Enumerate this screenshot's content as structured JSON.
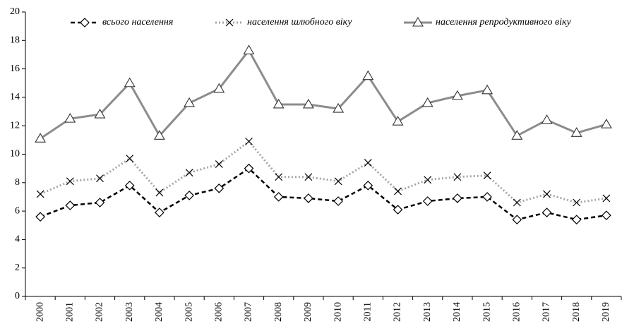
{
  "chart_data": {
    "type": "line",
    "categories": [
      "2000",
      "2001",
      "2002",
      "2003",
      "2004",
      "2005",
      "2006",
      "2007",
      "2008",
      "2009",
      "2010",
      "2011",
      "2012",
      "2013",
      "2014",
      "2015",
      "2016",
      "2017",
      "2018",
      "2019"
    ],
    "series": [
      {
        "name": "всього населення",
        "color": "#000000",
        "dash": "6,4",
        "marker": "diamond",
        "values": [
          5.6,
          6.4,
          6.6,
          7.8,
          5.9,
          7.1,
          7.6,
          9.0,
          7.0,
          6.9,
          6.7,
          7.8,
          6.1,
          6.7,
          6.9,
          7.0,
          5.4,
          5.9,
          5.4,
          5.7
        ]
      },
      {
        "name": "населення шлюбного віку",
        "color": "#a6a6a6",
        "dash": "2,3",
        "marker": "cross",
        "values": [
          7.2,
          8.1,
          8.3,
          9.7,
          7.3,
          8.7,
          9.3,
          10.9,
          8.4,
          8.4,
          8.1,
          9.4,
          7.4,
          8.2,
          8.4,
          8.5,
          6.6,
          7.2,
          6.6,
          6.9
        ]
      },
      {
        "name": "населення репродуктивного віку",
        "color": "#8c8c8c",
        "dash": "none",
        "marker": "triangle",
        "values": [
          11.1,
          12.5,
          12.8,
          15.0,
          11.3,
          13.6,
          14.6,
          17.3,
          13.5,
          13.5,
          13.2,
          15.5,
          12.3,
          13.6,
          14.1,
          14.5,
          11.3,
          12.4,
          11.5,
          12.1
        ]
      }
    ],
    "ylim": [
      0,
      20
    ],
    "yticks": [
      0,
      2,
      4,
      6,
      8,
      10,
      12,
      14,
      16,
      18,
      20
    ],
    "grid": false
  }
}
